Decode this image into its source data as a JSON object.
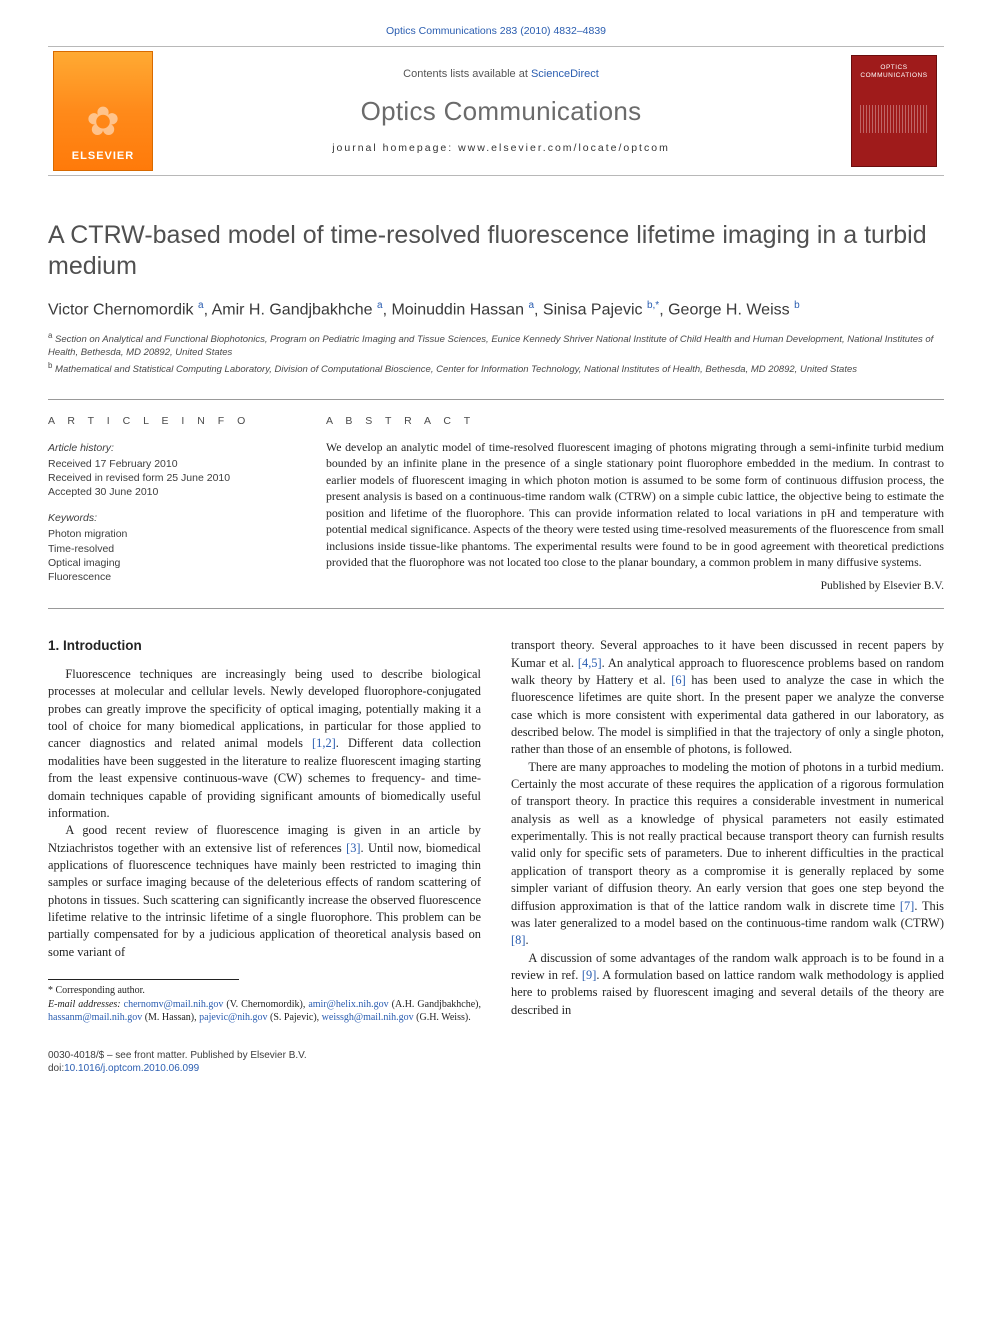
{
  "citation": {
    "text_prefix": "Optics Communications 283 (2010) 4832–4839",
    "journal_link": "Optics Communications"
  },
  "masthead": {
    "contents_prefix": "Contents lists available at ",
    "contents_link": "ScienceDirect",
    "journal": "Optics Communications",
    "homepage": "journal homepage: www.elsevier.com/locate/optcom",
    "publisher_logo_text": "ELSEVIER",
    "cover_label_line1": "OPTICS",
    "cover_label_line2": "COMMUNICATIONS"
  },
  "article": {
    "title": "A CTRW-based model of time-resolved fluorescence lifetime imaging in a turbid medium",
    "authors_html_parts": {
      "a1": "Victor Chernomordik",
      "s1": "a",
      "a2": "Amir H. Gandjbakhche",
      "s2": "a",
      "a3": "Moinuddin Hassan",
      "s3": "a",
      "a4": "Sinisa Pajevic",
      "s4": "b,",
      "star": "*",
      "a5": "George H. Weiss",
      "s5": "b"
    },
    "affiliations": [
      {
        "sup": "a",
        "text": "Section on Analytical and Functional Biophotonics, Program on Pediatric Imaging and Tissue Sciences, Eunice Kennedy Shriver National Institute of Child Health and Human Development, National Institutes of Health, Bethesda, MD 20892, United States"
      },
      {
        "sup": "b",
        "text": "Mathematical and Statistical Computing Laboratory, Division of Computational Bioscience, Center for Information Technology, National Institutes of Health, Bethesda, MD 20892, United States"
      }
    ]
  },
  "info": {
    "heading_left": "A R T I C L E   I N F O",
    "heading_right": "A B S T R A C T",
    "history_title": "Article history:",
    "history_lines": [
      "Received 17 February 2010",
      "Received in revised form 25 June 2010",
      "Accepted 30 June 2010"
    ],
    "keywords_title": "Keywords:",
    "keywords": [
      "Photon migration",
      "Time-resolved",
      "Optical imaging",
      "Fluorescence"
    ],
    "abstract": "We develop an analytic model of time-resolved fluorescent imaging of photons migrating through a semi-infinite turbid medium bounded by an infinite plane in the presence of a single stationary point fluorophore embedded in the medium. In contrast to earlier models of fluorescent imaging in which photon motion is assumed to be some form of continuous diffusion process, the present analysis is based on a continuous-time random walk (CTRW) on a simple cubic lattice, the objective being to estimate the position and lifetime of the fluorophore. This can provide information related to local variations in pH and temperature with potential medical significance. Aspects of the theory were tested using time-resolved measurements of the fluorescence from small inclusions inside tissue-like phantoms. The experimental results were found to be in good agreement with theoretical predictions provided that the fluorophore was not located too close to the planar boundary, a common problem in many diffusive systems.",
    "published_by": "Published by Elsevier B.V."
  },
  "section1": {
    "heading": "1. Introduction",
    "p1": "Fluorescence techniques are increasingly being used to describe biological processes at molecular and cellular levels. Newly developed fluorophore-conjugated probes can greatly improve the specificity of optical imaging, potentially making it a tool of choice for many biomedical applications, in particular for those applied to cancer diagnostics and related animal models ",
    "p1_ref": "[1,2]",
    "p1_tail": ". Different data collection modalities have been suggested in the literature to realize fluorescent imaging starting from the least expensive continuous-wave (CW) schemes to frequency- and time-domain techniques capable of providing significant amounts of biomedically useful information.",
    "p2": "A good recent review of fluorescence imaging is given in an article by Ntziachristos together with an extensive list of references ",
    "p2_ref": "[3]",
    "p2_tail": ". Until now, biomedical applications of fluorescence techniques have mainly been restricted to imaging thin samples or surface imaging because of the deleterious effects of random scattering of photons in tissues. Such scattering can significantly increase the observed fluorescence lifetime relative to the intrinsic lifetime of a single fluorophore. This problem can be partially compensated for by a judicious application of theoretical analysis based on some variant of",
    "p3a": "transport theory. Several approaches to it have been discussed in recent papers by Kumar et al. ",
    "p3a_ref": "[4,5]",
    "p3a_mid": ". An analytical approach to fluorescence problems based on random walk theory by Hattery et al. ",
    "p3a_ref2": "[6]",
    "p3a_tail": " has been used to analyze the case in which the fluorescence lifetimes are quite short. In the present paper we analyze the converse case which is more consistent with experimental data gathered in our laboratory, as described below. The model is simplified in that the trajectory of only a single photon, rather than those of an ensemble of photons, is followed.",
    "p4": "There are many approaches to modeling the motion of photons in a turbid medium. Certainly the most accurate of these requires the application of a rigorous formulation of transport theory. In practice this requires a considerable investment in numerical analysis as well as a knowledge of physical parameters not easily estimated experimentally. This is not really practical because transport theory can furnish results valid only for specific sets of parameters. Due to inherent difficulties in the practical application of transport theory as a compromise it is generally replaced by some simpler variant of diffusion theory. An early version that goes one step beyond the diffusion approximation is that of the lattice random walk in discrete time ",
    "p4_ref": "[7]",
    "p4_mid": ". This was later generalized to a model based on the continuous-time random walk (CTRW) ",
    "p4_ref2": "[8]",
    "p4_tail": ".",
    "p5": "A discussion of some advantages of the random walk approach is to be found in a review in ref. ",
    "p5_ref": "[9]",
    "p5_tail": ". A formulation based on lattice random walk methodology is applied here to problems raised by fluorescent imaging and several details of the theory are described in"
  },
  "footnotes": {
    "corr": "* Corresponding author.",
    "emails_label": "E-mail addresses:",
    "emails": [
      {
        "addr": "chernomv@mail.nih.gov",
        "who": " (V. Chernomordik), "
      },
      {
        "addr": "amir@helix.nih.gov",
        "who": " (A.H. Gandjbakhche), "
      },
      {
        "addr": "hassanm@mail.nih.gov",
        "who": " (M. Hassan), "
      },
      {
        "addr": "pajevic@nih.gov",
        "who": " (S. Pajevic), "
      },
      {
        "addr": "weissgh@mail.nih.gov",
        "who": " (G.H. Weiss)."
      }
    ]
  },
  "bottom": {
    "line1": "0030-4018/$ – see front matter. Published by Elsevier B.V.",
    "doi_prefix": "doi:",
    "doi": "10.1016/j.optcom.2010.06.099"
  },
  "colors": {
    "link": "#2a5db0",
    "rule": "#999999",
    "logo_grad_top": "#ffaa33",
    "logo_grad_bot": "#ff7a0a",
    "cover_bg": "#9f1b1b"
  }
}
